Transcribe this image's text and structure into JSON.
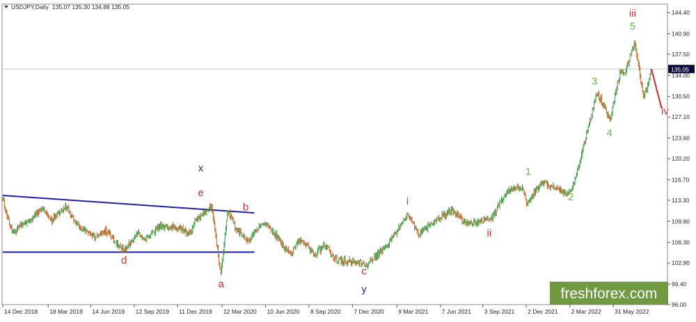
{
  "header": {
    "symbol": "USDJPY,Daily",
    "ohlc": "135.07 135.30 134.88 135.05"
  },
  "watermark": {
    "text": "freshforex.com",
    "color": "#6f9a3f"
  },
  "chart_data": {
    "type": "line",
    "title": "",
    "xlabel": "",
    "ylabel": "",
    "ylim": [
      96.0,
      145.8
    ],
    "grid": false,
    "current_price": 135.05,
    "current_price_label": "135.05",
    "y_ticks": [
      "144.40",
      "140.90",
      "137.50",
      "134.00",
      "130.50",
      "127.10",
      "123.60",
      "120.20",
      "116.70",
      "113.30",
      "109.80",
      "106.30",
      "102.90",
      "99.40",
      "96.00"
    ],
    "x_ticks": [
      "14 Dec 2018",
      "18 Mar 2019",
      "14 Jun 2019",
      "12 Sep 2019",
      "11 Dec 2019",
      "12 Mar 2020",
      "10 Jun 2020",
      "8 Sep 2020",
      "7 Dec 2020",
      "9 Mar 2021",
      "7 Jun 2021",
      "3 Sep 2021",
      "2 Dec 2021",
      "2 Mar 2022",
      "31 May 2022"
    ],
    "price_path": [
      [
        "2018-12-14",
        113.4
      ],
      [
        "2018-12-24",
        110.5
      ],
      [
        "2019-01-03",
        107.8
      ],
      [
        "2019-01-15",
        108.8
      ],
      [
        "2019-02-05",
        109.9
      ],
      [
        "2019-03-05",
        111.8
      ],
      [
        "2019-03-25",
        110.0
      ],
      [
        "2019-04-24",
        112.2
      ],
      [
        "2019-05-15",
        109.6
      ],
      [
        "2019-06-05",
        108.0
      ],
      [
        "2019-06-25",
        107.2
      ],
      [
        "2019-07-15",
        108.4
      ],
      [
        "2019-08-05",
        106.0
      ],
      [
        "2019-08-26",
        105.1
      ],
      [
        "2019-09-20",
        108.2
      ],
      [
        "2019-10-03",
        106.8
      ],
      [
        "2019-11-05",
        109.2
      ],
      [
        "2019-12-05",
        108.8
      ],
      [
        "2020-01-08",
        107.9
      ],
      [
        "2020-01-17",
        110.2
      ],
      [
        "2020-02-20",
        112.2
      ],
      [
        "2020-03-09",
        101.2
      ],
      [
        "2020-03-24",
        111.7
      ],
      [
        "2020-04-10",
        108.4
      ],
      [
        "2020-05-05",
        106.6
      ],
      [
        "2020-06-05",
        109.8
      ],
      [
        "2020-07-01",
        107.6
      ],
      [
        "2020-07-31",
        104.3
      ],
      [
        "2020-08-20",
        106.8
      ],
      [
        "2020-09-21",
        104.3
      ],
      [
        "2020-10-10",
        105.9
      ],
      [
        "2020-11-06",
        103.3
      ],
      [
        "2020-12-15",
        103.1
      ],
      [
        "2021-01-06",
        102.7
      ],
      [
        "2021-02-15",
        105.6
      ],
      [
        "2021-03-31",
        110.9
      ],
      [
        "2021-04-23",
        107.6
      ],
      [
        "2021-05-28",
        109.9
      ],
      [
        "2021-07-01",
        111.6
      ],
      [
        "2021-08-05",
        109.2
      ],
      [
        "2021-09-24",
        110.6
      ],
      [
        "2021-10-20",
        114.6
      ],
      [
        "2021-11-24",
        115.5
      ],
      [
        "2021-12-03",
        112.6
      ],
      [
        "2022-01-04",
        116.3
      ],
      [
        "2022-02-24",
        114.5
      ],
      [
        "2022-03-07",
        115.1
      ],
      [
        "2022-04-28",
        131.2
      ],
      [
        "2022-05-24",
        126.6
      ],
      [
        "2022-06-15",
        135.0
      ],
      [
        "2022-06-24",
        134.3
      ],
      [
        "2022-07-14",
        139.4
      ],
      [
        "2022-08-02",
        130.4
      ],
      [
        "2022-08-16",
        134.1
      ],
      [
        "2022-08-18",
        135.05
      ]
    ],
    "projection": [
      [
        "2022-08-18",
        135.05
      ],
      [
        "2022-09-08",
        128.5
      ]
    ],
    "trendlines": [
      [
        [
          "2018-12-14",
          114.1
        ],
        [
          "2020-05-18",
          111.2
        ]
      ],
      [
        [
          "2018-12-14",
          104.7
        ],
        [
          "2020-05-18",
          104.7
        ]
      ]
    ],
    "wave_labels": [
      {
        "text": "x",
        "date": "2020-01-28",
        "price": 118.1,
        "color": "#1e2bb5"
      },
      {
        "text": "e",
        "date": "2020-01-28",
        "price": 114.0,
        "color": "#d8262a"
      },
      {
        "text": "b",
        "date": "2020-04-30",
        "price": 111.6,
        "color": "#d8262a"
      },
      {
        "text": "d",
        "date": "2019-08-22",
        "price": 102.8,
        "color": "#d8262a"
      },
      {
        "text": "a",
        "date": "2020-03-10",
        "price": 98.9,
        "color": "#d8262a"
      },
      {
        "text": "c",
        "date": "2020-12-31",
        "price": 101.0,
        "color": "#d8262a"
      },
      {
        "text": "y",
        "date": "2020-12-31",
        "price": 98.0,
        "color": "#1e2bb5"
      },
      {
        "text": "i",
        "date": "2021-03-31",
        "price": 112.6,
        "color": "#d8262a"
      },
      {
        "text": "ii",
        "date": "2021-09-16",
        "price": 107.3,
        "color": "#d8262a"
      },
      {
        "text": "1",
        "date": "2021-12-06",
        "price": 117.5,
        "color": "#5fc24a"
      },
      {
        "text": "2",
        "date": "2022-03-04",
        "price": 113.3,
        "color": "#5fc24a"
      },
      {
        "text": "3",
        "date": "2022-04-22",
        "price": 132.5,
        "color": "#5fc24a"
      },
      {
        "text": "4",
        "date": "2022-05-23",
        "price": 123.9,
        "color": "#5fc24a"
      },
      {
        "text": "5",
        "date": "2022-07-10",
        "price": 141.6,
        "color": "#5fc24a"
      },
      {
        "text": "iii",
        "date": "2022-07-10",
        "price": 143.7,
        "color": "#d8262a"
      },
      {
        "text": "iv",
        "date": "2022-09-15",
        "price": 127.5,
        "color": "#d8262a"
      }
    ],
    "colors": {
      "up_candle": "#2e9a3a",
      "down_candle": "#c45d1a",
      "trendline": "#1e1ea8",
      "projection": "#d8262a",
      "price_marker": "#0b0b3a"
    }
  }
}
